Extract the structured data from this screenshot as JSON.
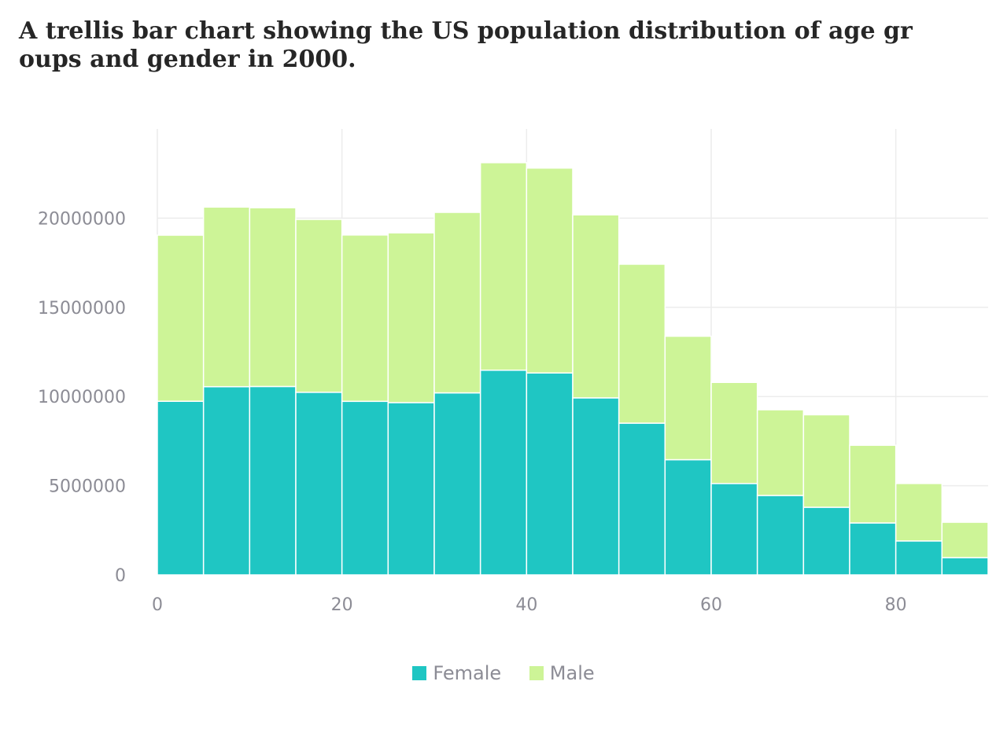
{
  "chart_data": {
    "type": "bar",
    "title": "A trellis bar chart showing the US population distribution of age groups and gender in 2000.",
    "xlabel": "",
    "ylabel": "",
    "x": [
      0,
      5,
      10,
      15,
      20,
      25,
      30,
      35,
      40,
      45,
      50,
      55,
      60,
      65,
      70,
      75,
      80,
      85
    ],
    "bin_width": 5,
    "stacked": true,
    "series": [
      {
        "name": "Female",
        "color": "#1fc6c3",
        "values": [
          9735380,
          10552146,
          10563233,
          10237419,
          9731315,
          9659493,
          10205879,
          11475182,
          11320252,
          9925006,
          8507934,
          6459082,
          5123399,
          4453623,
          3792145,
          2912655,
          1902638,
          970357
        ]
      },
      {
        "name": "Male",
        "color": "#cdf497",
        "values": [
          9310714,
          10069564,
          10022524,
          9692669,
          9324244,
          9518507,
          10119296,
          11635647,
          11488578,
          10261253,
          8911133,
          6921268,
          5668961,
          4804784,
          5184855,
          4355644,
          3221898,
          1981156
        ]
      }
    ],
    "xlim": [
      0,
      90
    ],
    "ylim": [
      0,
      25000000
    ],
    "x_ticks": [
      0,
      20,
      40,
      60,
      80
    ],
    "y_ticks": [
      0,
      5000000,
      10000000,
      15000000,
      20000000
    ],
    "grid": true,
    "legend_position": "bottom"
  }
}
